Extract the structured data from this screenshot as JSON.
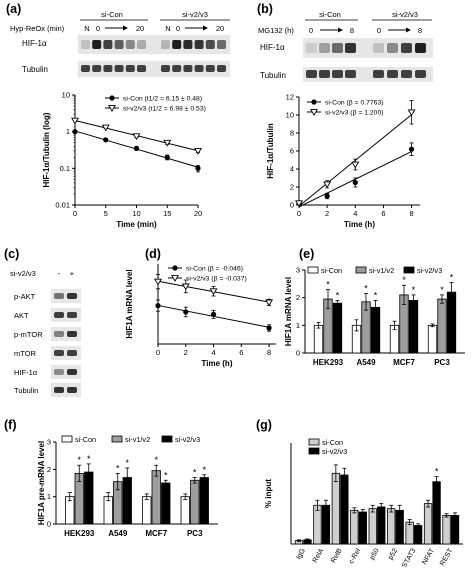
{
  "panel_labels": [
    "(a)",
    "(b)",
    "(c)",
    "(d)",
    "(e)",
    "(f)",
    "(g)"
  ],
  "blots": {
    "a": {
      "group_labels": [
        "si-Con",
        "si-v2/v3"
      ],
      "condition_label": "Hyp-ReOx (min)",
      "time_labels": [
        "N",
        "0",
        "20",
        "N",
        "0",
        "20"
      ],
      "rows": [
        "HIF-1α",
        "Tubulin"
      ],
      "intensity": {
        "HIF-1α": [
          0.2,
          0.95,
          0.8,
          0.65,
          0.45,
          0.3,
          0.25,
          0.95,
          0.9,
          0.85,
          0.75,
          0.6
        ],
        "Tubulin": [
          0.8,
          0.8,
          0.8,
          0.8,
          0.8,
          0.8,
          0.8,
          0.8,
          0.8,
          0.8,
          0.8,
          0.8
        ]
      }
    },
    "b": {
      "group_labels": [
        "si-Con",
        "si-v2/v3"
      ],
      "condition_label": "MG132 (h)",
      "time_labels": [
        "0",
        "8",
        "0",
        "8"
      ],
      "rows": [
        "HIF-1α",
        "Tubulin"
      ],
      "intensity": {
        "HIF-1α": [
          0.15,
          0.35,
          0.6,
          0.85,
          0.2,
          0.45,
          0.8,
          0.95
        ],
        "Tubulin": [
          0.8,
          0.8,
          0.8,
          0.8,
          0.8,
          0.8,
          0.8,
          0.8
        ]
      }
    },
    "c": {
      "columns_label": "si-v2/v3",
      "columns": [
        "-",
        "+"
      ],
      "rows": [
        "p-AKT",
        "AKT",
        "p-mTOR",
        "mTOR",
        "HIF-1α",
        "Tubulin"
      ],
      "intensity": {
        "p-AKT": [
          0.55,
          0.85
        ],
        "AKT": [
          0.8,
          0.8
        ],
        "p-mTOR": [
          0.5,
          0.85
        ],
        "mTOR": [
          0.8,
          0.8
        ],
        "HIF-1α": [
          0.45,
          0.85
        ],
        "Tubulin": [
          0.85,
          0.85
        ]
      }
    }
  },
  "colors": {
    "ink": "#000000",
    "grey_bar": "#9e9e9e",
    "white_bar": "#ffffff",
    "blot_bg": "#e6e6e6"
  },
  "chart_data": [
    {
      "id": "a",
      "type": "line",
      "xlabel": "Time (min)",
      "ylabel": "HIF-1α/Tubulin (log)",
      "x_ticks": [
        0,
        5,
        10,
        15,
        20
      ],
      "y_ticks": [
        0.01,
        0.1,
        1,
        10
      ],
      "y_tick_labels": [
        "0.01",
        "0.1",
        "1",
        "10"
      ],
      "xlim": [
        0,
        20
      ],
      "ylim": [
        0.01,
        10
      ],
      "yscale": "log",
      "series": [
        {
          "name": "si-Con (t1/2 = 6.15 ± 0.48)",
          "marker": "filled-circle",
          "x": [
            0,
            5,
            10,
            15,
            20
          ],
          "y": [
            1.0,
            0.6,
            0.35,
            0.2,
            0.1
          ],
          "err": [
            0.05,
            0.05,
            0.04,
            0.03,
            0.02
          ]
        },
        {
          "name": "si-v2/v3 (t1/2 = 6.98 ± 0.53)",
          "marker": "open-triangle",
          "x": [
            0,
            5,
            10,
            15,
            20
          ],
          "y": [
            2.0,
            1.3,
            0.75,
            0.5,
            0.3
          ],
          "err": [
            0.1,
            0.08,
            0.06,
            0.05,
            0.03
          ]
        }
      ]
    },
    {
      "id": "b",
      "type": "line",
      "xlabel": "Time (h)",
      "ylabel": "HIF-1α/Tubulin",
      "x_ticks": [
        0,
        2,
        4,
        6,
        8
      ],
      "y_ticks": [
        0,
        2,
        4,
        6,
        8,
        10,
        12
      ],
      "xlim": [
        0,
        8.6
      ],
      "ylim": [
        0,
        12
      ],
      "series": [
        {
          "name": "si-Con (β = 0.7763)",
          "marker": "filled-circle",
          "x": [
            0,
            2,
            4,
            8
          ],
          "y": [
            0.2,
            1.0,
            2.5,
            6.2
          ],
          "err": [
            0.1,
            0.3,
            0.5,
            0.7
          ]
        },
        {
          "name": "si-v2/v3 (β = 1.200)",
          "marker": "open-triangle",
          "x": [
            0,
            2,
            4,
            8
          ],
          "y": [
            0.2,
            2.3,
            4.5,
            10.3
          ],
          "err": [
            0.1,
            0.4,
            0.6,
            1.3
          ]
        }
      ]
    },
    {
      "id": "d",
      "type": "line",
      "xlabel": "Time (h)",
      "ylabel": "HIF1A mRNA level",
      "x_ticks": [
        0,
        2,
        4,
        6,
        8
      ],
      "y_ticks": [],
      "y_tick_labels": [],
      "xlim": [
        0,
        8.5
      ],
      "ylim": [
        0,
        1
      ],
      "series": [
        {
          "name": "si-Con (β = -0.046)",
          "marker": "filled-circle",
          "x": [
            0,
            2,
            4,
            8
          ],
          "y": [
            0.48,
            0.4,
            0.37,
            0.2
          ],
          "err": [
            0.07,
            0.06,
            0.05,
            0.04
          ]
        },
        {
          "name": "si-v2/v3 (β = -0.037)",
          "marker": "open-triangle",
          "x": [
            0,
            2,
            4,
            8
          ],
          "y": [
            0.78,
            0.72,
            0.66,
            0.52
          ],
          "err": [
            0.09,
            0.08,
            0.06,
            0.04
          ]
        }
      ]
    },
    {
      "id": "e",
      "type": "bar",
      "ylabel": "HIF1A mRNA level",
      "categories": [
        "HEK293",
        "A549",
        "MCF7",
        "PC3"
      ],
      "y_ticks": [
        0,
        1,
        2,
        3
      ],
      "ylim": [
        0,
        3
      ],
      "series": [
        {
          "name": "si-Con",
          "fill": "white",
          "values": [
            1.0,
            1.0,
            1.0,
            1.0
          ],
          "err": [
            0.1,
            0.2,
            0.15,
            0.05
          ]
        },
        {
          "name": "si-v1/v2",
          "fill": "grey",
          "values": [
            1.95,
            1.85,
            2.1,
            1.95
          ],
          "err": [
            0.35,
            0.3,
            0.35,
            0.15
          ]
        },
        {
          "name": "si-v2/v3",
          "fill": "black",
          "values": [
            1.8,
            1.65,
            1.9,
            2.2
          ],
          "err": [
            0.1,
            0.25,
            0.2,
            0.35
          ]
        }
      ],
      "significance": [
        {
          "group": 0,
          "series": 1
        },
        {
          "group": 0,
          "series": 2
        },
        {
          "group": 1,
          "series": 1
        },
        {
          "group": 1,
          "series": 2
        },
        {
          "group": 2,
          "series": 1
        },
        {
          "group": 2,
          "series": 2
        },
        {
          "group": 3,
          "series": 1
        },
        {
          "group": 3,
          "series": 2
        }
      ]
    },
    {
      "id": "f",
      "type": "bar",
      "ylabel": "HIF1A pre-mRNA level",
      "categories": [
        "HEK293",
        "A549",
        "MCF7",
        "PC3"
      ],
      "y_ticks": [
        0,
        1,
        2,
        3
      ],
      "ylim": [
        0,
        3
      ],
      "series": [
        {
          "name": "si-Con",
          "fill": "white",
          "values": [
            1.0,
            1.0,
            1.0,
            1.0
          ],
          "err": [
            0.15,
            0.15,
            0.1,
            0.1
          ]
        },
        {
          "name": "si-v1/v2",
          "fill": "grey",
          "values": [
            1.85,
            1.55,
            1.95,
            1.6
          ],
          "err": [
            0.3,
            0.3,
            0.2,
            0.1
          ]
        },
        {
          "name": "si-v2/v3",
          "fill": "black",
          "values": [
            1.9,
            1.7,
            1.5,
            1.7
          ],
          "err": [
            0.3,
            0.35,
            0.1,
            0.1
          ]
        }
      ],
      "significance": [
        {
          "group": 0,
          "series": 1
        },
        {
          "group": 0,
          "series": 2
        },
        {
          "group": 1,
          "series": 1
        },
        {
          "group": 1,
          "series": 2
        },
        {
          "group": 2,
          "series": 1
        },
        {
          "group": 2,
          "series": 2
        },
        {
          "group": 3,
          "series": 1
        },
        {
          "group": 3,
          "series": 2
        }
      ]
    },
    {
      "id": "g",
      "type": "bar",
      "ylabel": "% input",
      "categories": [
        "IgG",
        "RelA",
        "RelB",
        "c-Rel",
        "p50",
        "p52",
        "STAT3",
        "NFAT",
        "REST"
      ],
      "y_ticks": [],
      "ylim": [
        0,
        6
      ],
      "series": [
        {
          "name": "si-Con",
          "fill": "lightgrey",
          "values": [
            0.2,
            2.3,
            4.2,
            2.0,
            2.1,
            2.1,
            1.3,
            2.4,
            1.7
          ],
          "err": [
            0.05,
            0.3,
            0.5,
            0.15,
            0.2,
            0.2,
            0.15,
            0.2,
            0.1
          ]
        },
        {
          "name": "si-v2/v3",
          "fill": "black",
          "values": [
            0.25,
            2.3,
            4.1,
            1.9,
            2.2,
            2.0,
            1.1,
            3.7,
            1.7
          ],
          "err": [
            0.05,
            0.3,
            0.4,
            0.15,
            0.2,
            0.3,
            0.1,
            0.3,
            0.15
          ]
        }
      ],
      "significance": [
        {
          "group": 7,
          "series": 1
        }
      ]
    }
  ]
}
